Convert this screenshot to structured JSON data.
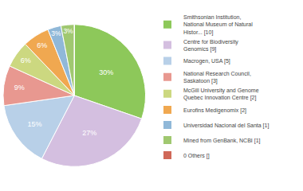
{
  "chart_data": {
    "type": "pie",
    "categories": [
      "Smithsonian Institution,\nNational Museum of Natural\nHistor... [10]",
      "Centre for Biodiversity\nGenomics [9]",
      "Macrogen, USA [5]",
      "National Research Council,\nSaskatoon [3]",
      "McGill University and Genome\nQuebec Innovation Centre [2]",
      "Eurofins Medigenomix [2]",
      "Universidad Nacional del Santa [1]",
      "Mined from GenBank, NCBI [1]",
      "0 Others []"
    ],
    "values": [
      30,
      27,
      15,
      9,
      6,
      6,
      3,
      3,
      0
    ],
    "value_labels": [
      "30%",
      "27%",
      "15%",
      "9%",
      "6%",
      "6%",
      "3%",
      "3%",
      null
    ],
    "colors": [
      "#8dc85a",
      "#d4bfe0",
      "#b8d0e8",
      "#e89890",
      "#ccd880",
      "#f0a850",
      "#90b8d8",
      "#a0c870",
      "#d06858"
    ],
    "data_labels": true,
    "legend": "right"
  }
}
